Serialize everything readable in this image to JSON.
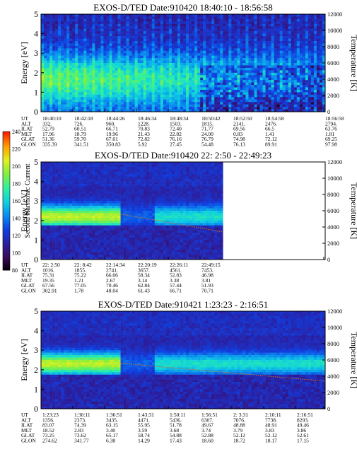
{
  "chart_data": [
    {
      "type": "heatmap",
      "title": "EXOS-D/TED   Date:910420  18:40:10 - 18:56:58",
      "ylabel": "Energy [eV]",
      "y2label": "Temperature [K]",
      "ylim": [
        0,
        5
      ],
      "y2lim": [
        0,
        12000
      ],
      "yticks": [
        "0",
        "1",
        "2",
        "3",
        "4",
        "5"
      ],
      "y2ticks": [
        "0",
        "2000",
        "4000",
        "6000",
        "8000",
        "10000",
        "12000"
      ],
      "time_fill": 1.0,
      "temperature_trace": false,
      "band_center_ev": 1.7,
      "orbit_table": {
        "rows": [
          "UT",
          "ALT",
          "ILAT",
          "MLT",
          "GLAT",
          "GLON"
        ],
        "columns": [
          [
            "18:40:10",
            "332.",
            "52.79",
            "17.96",
            "51.36",
            "335.39"
          ],
          [
            "18:42:18",
            "726.",
            "60.51",
            "18.79",
            "59.70",
            "341.51"
          ],
          [
            "18:44:26",
            "960.",
            "66.71",
            "19.96",
            "67.01",
            "350.83"
          ],
          [
            "18:46:34",
            "1228.",
            "70.83",
            "21.43",
            "72.82",
            "5.92"
          ],
          [
            "18:48:34",
            "1503.",
            "72.40",
            "22.82",
            "76.16",
            "27.45"
          ],
          [
            "18:50:42",
            "1815.",
            "71.77",
            "24.00",
            "76.79",
            "54.48"
          ],
          [
            "18:52:50",
            "2141.",
            "69.56",
            "0.83",
            "74.98",
            "76.13"
          ],
          [
            "18:54:58",
            "2476.",
            "66.5",
            "1.41",
            "72.12",
            "89.91"
          ],
          [
            "18:56:58",
            "2794.",
            "63.76",
            "1.81",
            "69.25",
            "97.98"
          ]
        ]
      }
    },
    {
      "type": "heatmap",
      "title": "EXOS-D/TED   Date:910420  22: 2:50 - 22:49:23",
      "ylabel": "Energy [eV]",
      "y2label": "Temperature [K]",
      "ylim": [
        0,
        5
      ],
      "y2lim": [
        0,
        12000
      ],
      "yticks": [
        "0",
        "1",
        "2",
        "3",
        "4",
        "5"
      ],
      "y2ticks": [
        "0",
        "2000",
        "4000",
        "6000",
        "8000",
        "10000",
        "12000"
      ],
      "time_fill": 0.64,
      "temperature_trace": true,
      "band_center_ev": 2.2,
      "orbit_table": {
        "rows": [
          "UT",
          "ALT",
          "ILAT",
          "MLT",
          "GLAT",
          "GLON"
        ],
        "columns": [
          [
            "22: 2:50",
            "1016.",
            "75.31",
            "19.35",
            "67.56",
            "302.91"
          ],
          [
            "22: 8:42",
            "1855.",
            "75.22",
            "1.21",
            "77.05",
            "1.78"
          ],
          [
            "22:14:34",
            "2741.",
            "66.06",
            "2.67",
            "70.46",
            "48.04"
          ],
          [
            "22:20:19",
            "3657.",
            "58.34",
            "3.14",
            "62.84",
            "61.43"
          ],
          [
            "22:26:11",
            "4561.",
            "52.83",
            "3.38",
            "57.44",
            "66.71"
          ],
          [
            "22:49:15",
            "7453.",
            "46.98",
            "3.81",
            "51.93",
            "70.71"
          ]
        ]
      }
    },
    {
      "type": "heatmap",
      "title": "EXOS-D/TED   Date:910421  1:23:23 - 2:16:51",
      "ylabel": "Energy [eV]",
      "y2label": "Temperature [K]",
      "ylim": [
        0,
        5
      ],
      "y2lim": [
        0,
        12000
      ],
      "yticks": [
        "0",
        "1",
        "2",
        "3",
        "4",
        "5"
      ],
      "y2ticks": [
        "0",
        "2000",
        "4000",
        "6000",
        "8000",
        "10000",
        "12000"
      ],
      "time_fill": 1.0,
      "temperature_trace": true,
      "band_center_ev": 2.3,
      "orbit_table": {
        "rows": [
          "UT",
          "ALT",
          "ILAT",
          "MLT",
          "GLAT",
          "GLON"
        ],
        "columns": [
          [
            "1:23:23",
            "1356.",
            "83.07",
            "18.52",
            "73.25",
            "274.62"
          ],
          [
            "1:30:11",
            "2373.",
            "74.39",
            "2.83",
            "73.62",
            "341.77"
          ],
          [
            "1:36:51",
            "3435.",
            "63.15",
            "3.40",
            "65.17",
            "6.38"
          ],
          [
            "1:43:31",
            "4471.",
            "55.95",
            "3.59",
            "58.74",
            "14.29"
          ],
          [
            "1:50:11",
            "5436.",
            "51.78",
            "3.68",
            "54.88",
            "17.43"
          ],
          [
            "1:56:51",
            "6307.",
            "49.67",
            "3.74",
            "52.88",
            "18.60"
          ],
          [
            "2: 3:31",
            "7076.",
            "48.88",
            "3.79",
            "52.12",
            "18.72"
          ],
          [
            "2:10:11",
            "7738.",
            "48.91",
            "3.83",
            "52.12",
            "18.17"
          ],
          [
            "2:16:51",
            "8293.",
            "49.46",
            "3.86",
            "52.61",
            "17.15"
          ]
        ]
      }
    }
  ],
  "colorbar": {
    "label": "Second Harmonic Current",
    "ticks": [
      "80",
      "100",
      "120",
      "140",
      "160",
      "180",
      "200",
      "220",
      "240"
    ],
    "range": [
      80,
      240
    ],
    "colors": [
      "#000000",
      "#3a0a5a",
      "#2b1fa0",
      "#1040e0",
      "#0a8cf0",
      "#10d0e0",
      "#30f0a0",
      "#80f040",
      "#e0f020",
      "#ffa000",
      "#ff2000"
    ]
  }
}
